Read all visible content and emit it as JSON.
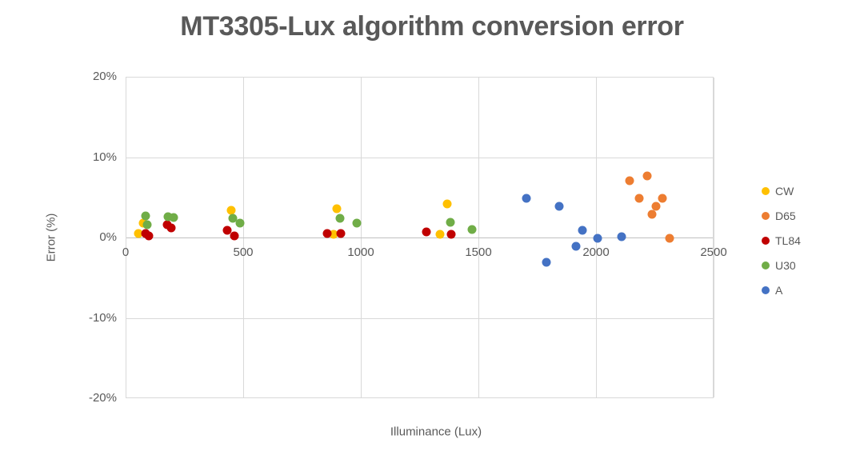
{
  "title": "MT3305-Lux algorithm conversion error",
  "colors": {
    "text": "#595959",
    "gridline": "#D9D9D9",
    "axis_line": "#BFBFBF",
    "background": "#FFFFFF"
  },
  "chart_data": {
    "type": "scatter",
    "title": "MT3305-Lux algorithm conversion error",
    "xlabel": "Illuminance (Lux)",
    "ylabel": "Error (%)",
    "xlim": [
      0,
      2500
    ],
    "ylim": [
      -20,
      20
    ],
    "grid": true,
    "legend_position": "right",
    "x_ticks": [
      {
        "value": 0,
        "label": "0"
      },
      {
        "value": 500,
        "label": "500"
      },
      {
        "value": 1000,
        "label": "1000"
      },
      {
        "value": 1500,
        "label": "1500"
      },
      {
        "value": 2000,
        "label": "2000"
      },
      {
        "value": 2500,
        "label": "2500"
      }
    ],
    "y_ticks": [
      {
        "value": 20,
        "label": "20%"
      },
      {
        "value": 10,
        "label": "10%"
      },
      {
        "value": 0,
        "label": "0%"
      },
      {
        "value": -10,
        "label": "-10%"
      },
      {
        "value": -20,
        "label": "-20%"
      }
    ],
    "series": [
      {
        "name": "CW",
        "color": "#FFC000",
        "points": [
          [
            51,
            0.6
          ],
          [
            70,
            1.9
          ],
          [
            445,
            3.5
          ],
          [
            880,
            0.5
          ],
          [
            895,
            3.7
          ],
          [
            1335,
            0.5
          ],
          [
            1365,
            4.3
          ]
        ]
      },
      {
        "name": "D65",
        "color": "#ED7D31",
        "points": [
          [
            2140,
            7.2
          ],
          [
            2180,
            5.0
          ],
          [
            2215,
            7.8
          ],
          [
            2235,
            3.0
          ],
          [
            2250,
            4.0
          ],
          [
            2280,
            5.0
          ],
          [
            2310,
            0.0
          ]
        ]
      },
      {
        "name": "TL84",
        "color": "#C00000",
        "points": [
          [
            80,
            0.6
          ],
          [
            95,
            0.25
          ],
          [
            172,
            1.7
          ],
          [
            190,
            1.3
          ],
          [
            430,
            1.0
          ],
          [
            460,
            0.3
          ],
          [
            855,
            0.6
          ],
          [
            912,
            0.6
          ],
          [
            1275,
            0.8
          ],
          [
            1380,
            0.5
          ]
        ]
      },
      {
        "name": "U30",
        "color": "#70AD47",
        "points": [
          [
            82,
            2.8
          ],
          [
            90,
            1.7
          ],
          [
            178,
            2.7
          ],
          [
            200,
            2.6
          ],
          [
            452,
            2.5
          ],
          [
            483,
            1.9
          ],
          [
            908,
            2.5
          ],
          [
            980,
            1.9
          ],
          [
            1378,
            2.0
          ],
          [
            1470,
            1.1
          ]
        ]
      },
      {
        "name": "A",
        "color": "#4472C4",
        "points": [
          [
            1700,
            5.0
          ],
          [
            1785,
            -3.0
          ],
          [
            1840,
            4.0
          ],
          [
            1910,
            -1.0
          ],
          [
            1940,
            1.0
          ],
          [
            2005,
            0.0
          ],
          [
            2105,
            0.2
          ]
        ]
      }
    ]
  }
}
